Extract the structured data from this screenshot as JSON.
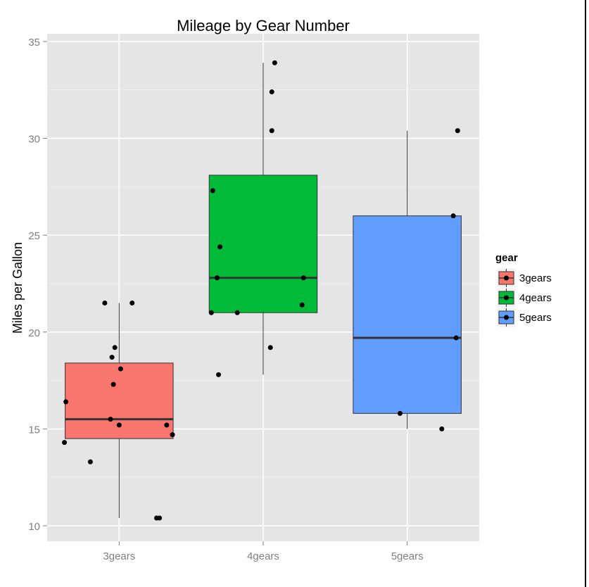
{
  "chart_data": {
    "type": "box",
    "title": "Mileage by Gear Number",
    "xlabel": "",
    "ylabel": "Miles per Gallon",
    "ylim": [
      9.2,
      35.4
    ],
    "yticks": [
      10,
      15,
      20,
      25,
      30,
      35
    ],
    "grid": true,
    "legend_position": "right",
    "legend_title": "gear",
    "categories": [
      "3gears",
      "4gears",
      "5gears"
    ],
    "series": [
      {
        "name": "3gears",
        "color": "#F8766D",
        "whisker_low": 10.4,
        "q1": 14.5,
        "median": 15.5,
        "q3": 18.4,
        "whisker_high": 21.5,
        "points": [
          {
            "x_jitter": -0.38,
            "y": 14.3
          },
          {
            "x_jitter": -0.37,
            "y": 16.4
          },
          {
            "x_jitter": -0.2,
            "y": 13.3
          },
          {
            "x_jitter": -0.1,
            "y": 21.5
          },
          {
            "x_jitter": -0.06,
            "y": 15.5
          },
          {
            "x_jitter": -0.05,
            "y": 18.7
          },
          {
            "x_jitter": -0.04,
            "y": 17.3
          },
          {
            "x_jitter": -0.03,
            "y": 19.2
          },
          {
            "x_jitter": 0.0,
            "y": 15.2
          },
          {
            "x_jitter": 0.01,
            "y": 18.1
          },
          {
            "x_jitter": 0.09,
            "y": 21.5
          },
          {
            "x_jitter": 0.26,
            "y": 10.4
          },
          {
            "x_jitter": 0.28,
            "y": 10.4
          },
          {
            "x_jitter": 0.33,
            "y": 15.2
          },
          {
            "x_jitter": 0.37,
            "y": 14.7
          }
        ]
      },
      {
        "name": "4gears",
        "color": "#00BA38",
        "whisker_low": 17.8,
        "q1": 21.0,
        "median": 22.8,
        "q3": 28.1,
        "whisker_high": 33.9,
        "points": [
          {
            "x_jitter": -0.36,
            "y": 21.0
          },
          {
            "x_jitter": -0.35,
            "y": 27.3
          },
          {
            "x_jitter": -0.32,
            "y": 22.8
          },
          {
            "x_jitter": -0.31,
            "y": 17.8
          },
          {
            "x_jitter": -0.3,
            "y": 24.4
          },
          {
            "x_jitter": -0.18,
            "y": 21.0
          },
          {
            "x_jitter": 0.05,
            "y": 19.2
          },
          {
            "x_jitter": 0.06,
            "y": 30.4
          },
          {
            "x_jitter": 0.06,
            "y": 32.4
          },
          {
            "x_jitter": 0.08,
            "y": 33.9
          },
          {
            "x_jitter": 0.27,
            "y": 21.4
          },
          {
            "x_jitter": 0.28,
            "y": 22.8
          }
        ]
      },
      {
        "name": "5gears",
        "color": "#619CFF",
        "whisker_low": 15.0,
        "q1": 15.8,
        "median": 19.7,
        "q3": 26.0,
        "whisker_high": 30.4,
        "points": [
          {
            "x_jitter": -0.05,
            "y": 15.8
          },
          {
            "x_jitter": 0.24,
            "y": 15.0
          },
          {
            "x_jitter": 0.32,
            "y": 26.0
          },
          {
            "x_jitter": 0.34,
            "y": 19.7
          },
          {
            "x_jitter": 0.35,
            "y": 30.4
          }
        ]
      }
    ]
  }
}
